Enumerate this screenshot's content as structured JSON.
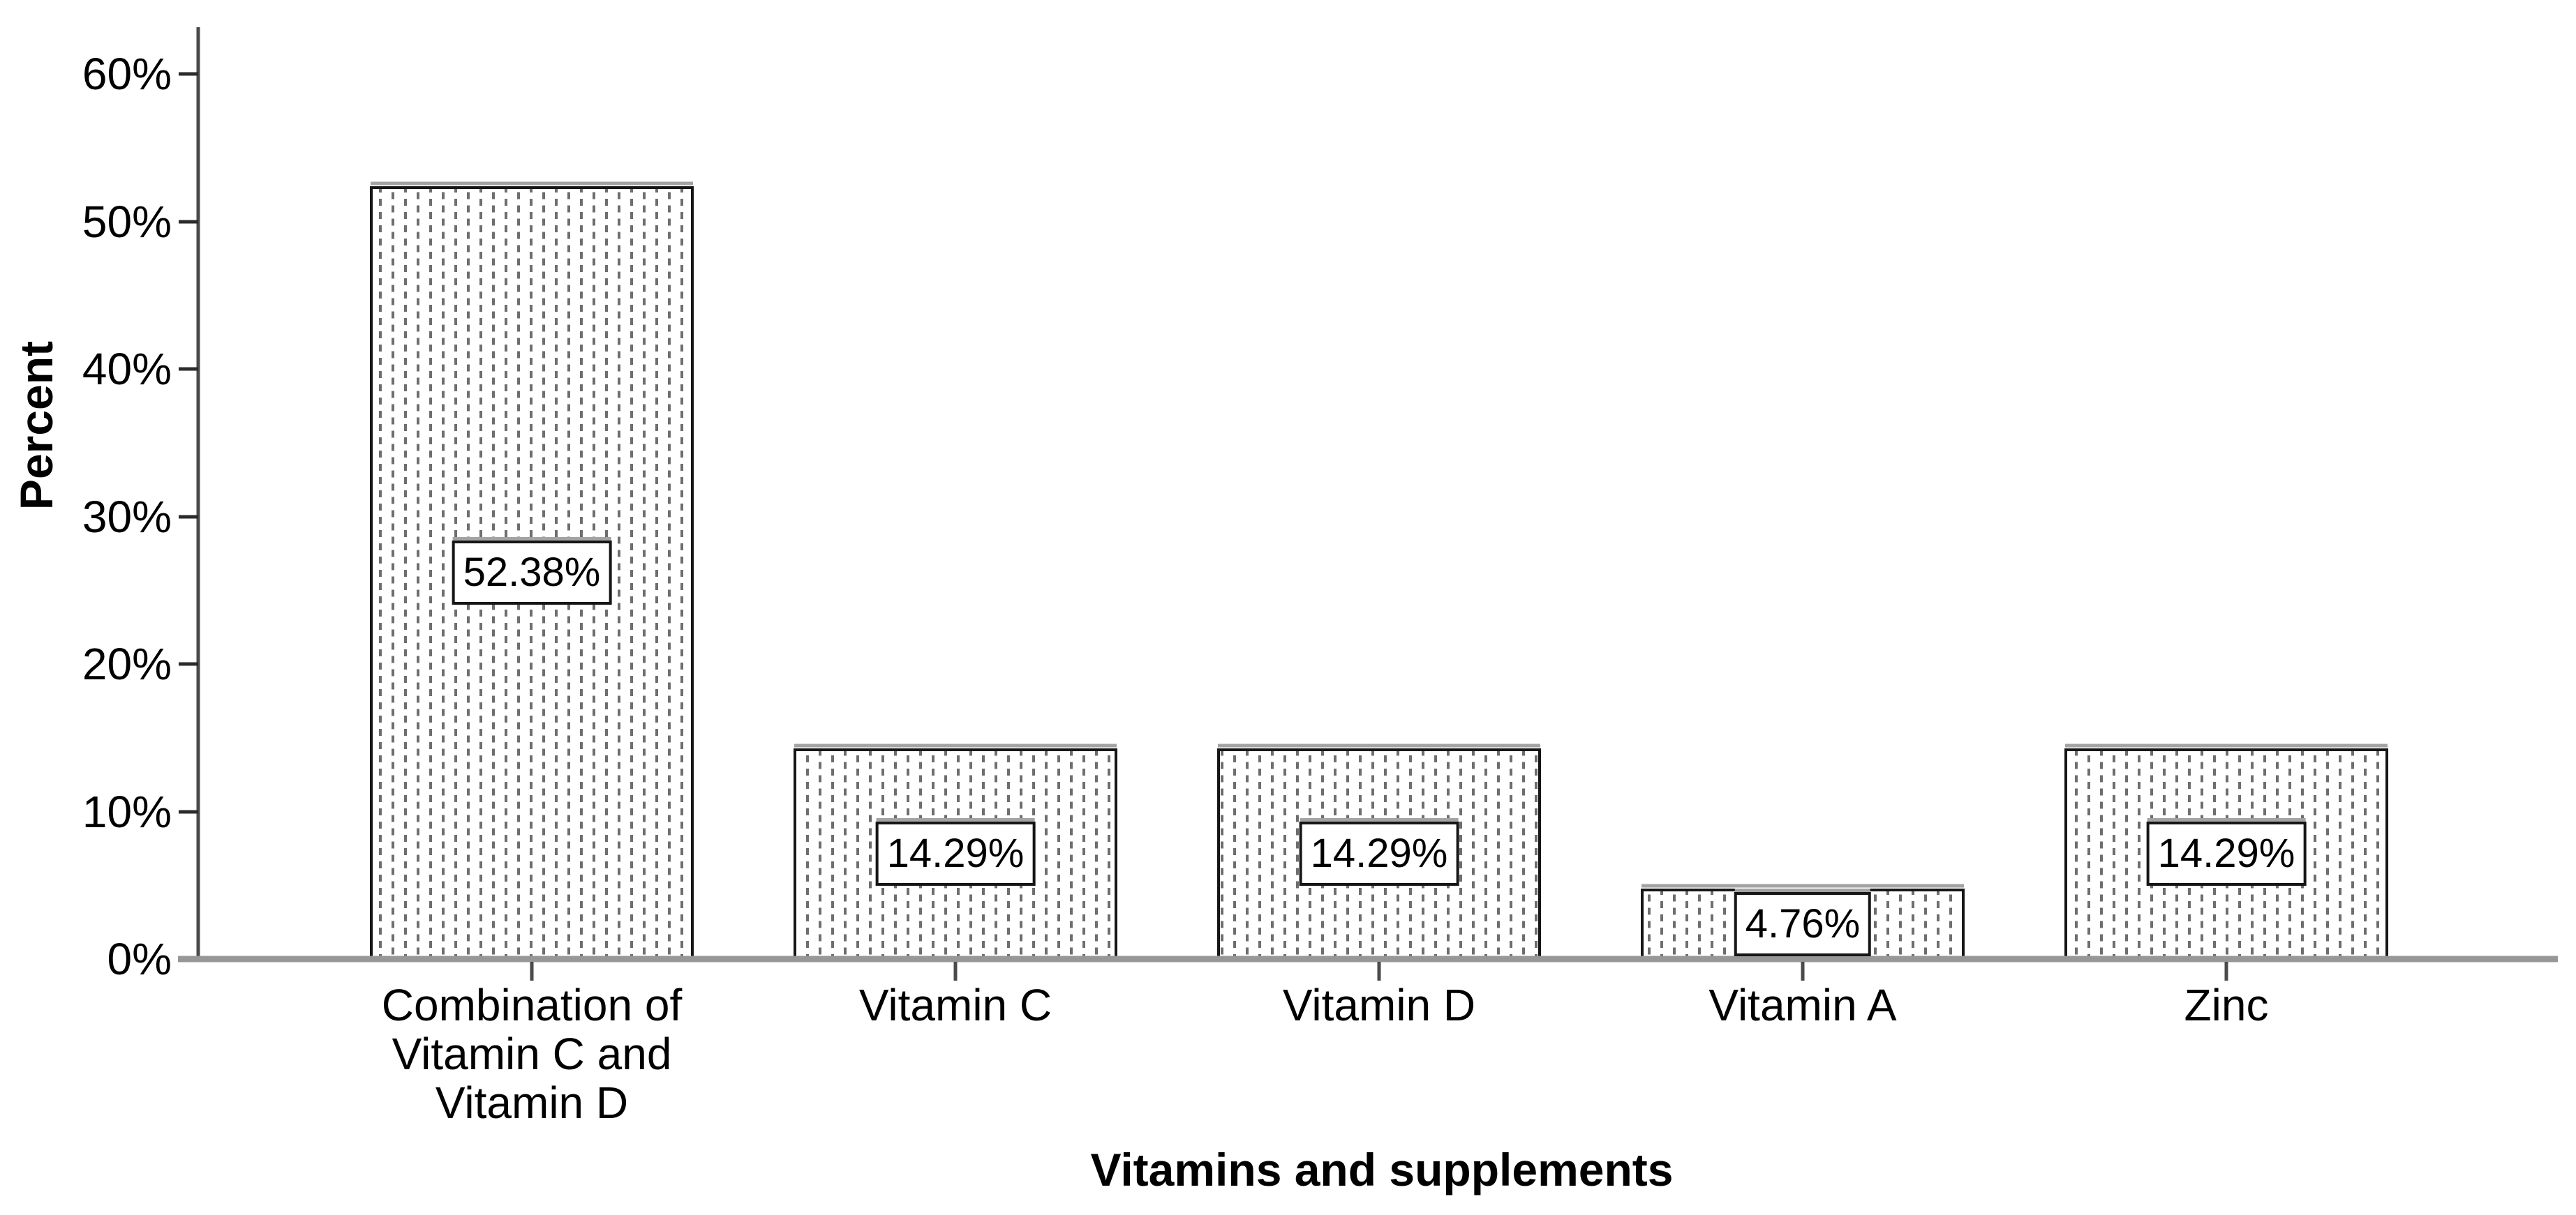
{
  "chart_data": {
    "type": "bar",
    "title": "",
    "xlabel": "Vitamins and supplements",
    "ylabel": "Percent",
    "categories": [
      "Combination of Vitamin C and Vitamin D",
      "Vitamin C",
      "Vitamin D",
      "Vitamin A",
      "Zinc"
    ],
    "category_lines": [
      [
        "Combination of",
        "Vitamin C and",
        "Vitamin D"
      ],
      [
        "Vitamin C"
      ],
      [
        "Vitamin D"
      ],
      [
        "Vitamin A"
      ],
      [
        "Zinc"
      ]
    ],
    "values": [
      52.38,
      14.29,
      14.29,
      4.76,
      14.29
    ],
    "bar_labels": [
      "52.38%",
      "14.29%",
      "14.29%",
      "4.76%",
      "14.29%"
    ],
    "y_ticks": [
      "0%",
      "10%",
      "20%",
      "30%",
      "40%",
      "50%",
      "60%"
    ],
    "y_tick_step": 10,
    "ylim": [
      0,
      63
    ],
    "grid": false,
    "legend_position": "none",
    "bar_fill_style": "white with gray vertical dashed hatch",
    "colors": {
      "bar_border": "#161616",
      "hatch": "#6e6e6e",
      "axis_line": "#4a4a4a",
      "baseline": "#979797",
      "tick": "#2b2b2b",
      "text": "#000000",
      "label_box_bg": "#ffffff",
      "label_box_border": "#161616",
      "edge_shadow": "#a3a3a3",
      "background": "#ffffff"
    }
  }
}
